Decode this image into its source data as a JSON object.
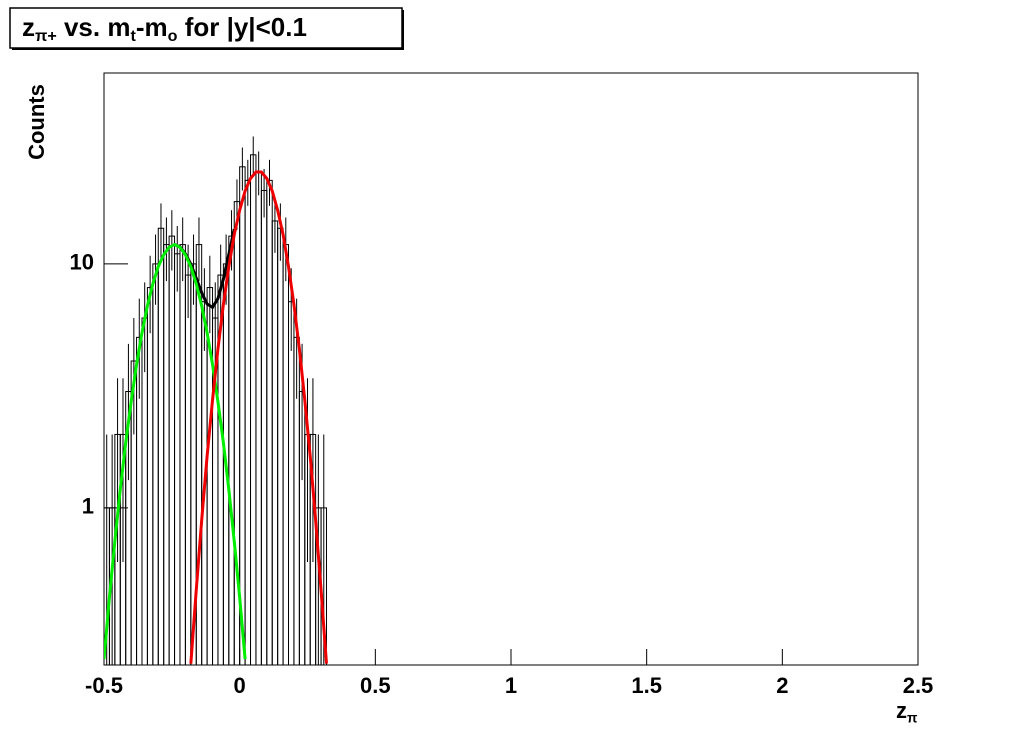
{
  "chart_data": {
    "type": "histogram",
    "title": [
      {
        "text": "z",
        "sub": false
      },
      {
        "text": "π+",
        "sub": true
      },
      {
        "text": " vs. m",
        "sub": false
      },
      {
        "text": "t",
        "sub": true
      },
      {
        "text": "-m",
        "sub": false
      },
      {
        "text": "o",
        "sub": true
      },
      {
        "text": " for |y|<0.1",
        "sub": false
      }
    ],
    "xlabel": [
      {
        "text": "z",
        "sub": false
      },
      {
        "text": "π",
        "sub": true
      }
    ],
    "ylabel": "Counts",
    "log_y": true,
    "color": "#000000",
    "bins": [
      -0.5,
      -0.48,
      -0.46,
      -0.44,
      -0.42,
      -0.4,
      -0.38,
      -0.36,
      -0.34,
      -0.32,
      -0.3,
      -0.28,
      -0.26,
      -0.24,
      -0.22,
      -0.2,
      -0.18,
      -0.16,
      -0.14,
      -0.12,
      -0.1,
      -0.08,
      -0.06,
      -0.04,
      -0.02,
      0,
      0.02,
      0.04,
      0.06,
      0.08,
      0.1,
      0.12,
      0.14,
      0.16,
      0.18,
      0.2,
      0.22,
      0.24,
      0.26,
      0.28,
      0.3,
      0.32
    ],
    "values": [
      1,
      1,
      2,
      2,
      3,
      4,
      5,
      6,
      8,
      10,
      14,
      12,
      13,
      11,
      12,
      9,
      10,
      12,
      7,
      8,
      6,
      9,
      10,
      13,
      18,
      25,
      22,
      28,
      24,
      20,
      22,
      15,
      14,
      12,
      7,
      5,
      3,
      2,
      2,
      1,
      1
    ],
    "errors": [
      1,
      1,
      1.4,
      1.4,
      1.7,
      2,
      2.2,
      2.4,
      2.8,
      3.2,
      3.7,
      3.5,
      3.6,
      3.3,
      3.5,
      3,
      3.2,
      3.5,
      2.6,
      2.8,
      2.4,
      3,
      3.2,
      3.6,
      4.2,
      5,
      4.7,
      5.3,
      4.9,
      4.5,
      4.7,
      3.9,
      3.7,
      3.5,
      2.6,
      2.2,
      1.7,
      1.4,
      1.4,
      1,
      1
    ],
    "fits": [
      {
        "color": "#000000",
        "x": [
          -0.24,
          -0.22,
          -0.2,
          -0.18,
          -0.16,
          -0.14,
          -0.12,
          -0.1,
          -0.08,
          -0.06,
          -0.04,
          -0.02
        ],
        "values": [
          12.0,
          11.75,
          11.0,
          9.98,
          8.74,
          7.62,
          6.85,
          6.64,
          7.21,
          8.67,
          10.94,
          13.9
        ]
      },
      {
        "color": "#00ee00",
        "x": [
          -0.5,
          -0.48,
          -0.46,
          -0.44,
          -0.42,
          -0.4,
          -0.38,
          -0.36,
          -0.34,
          -0.32,
          -0.3,
          -0.28,
          -0.26,
          -0.24,
          -0.22,
          -0.2,
          -0.18,
          -0.16,
          -0.14,
          -0.12,
          -0.1,
          -0.08,
          -0.06,
          -0.04,
          -0.02,
          0,
          0.02
        ],
        "values": [
          0.24,
          0.43,
          0.73,
          1.19,
          1.85,
          2.72,
          3.87,
          5.22,
          6.73,
          8.28,
          9.75,
          10.9,
          11.7,
          12,
          11.7,
          10.9,
          9.75,
          8.28,
          6.73,
          5.22,
          3.87,
          2.72,
          1.85,
          1.19,
          0.73,
          0.43,
          0.24
        ]
      },
      {
        "color": "#ee0000",
        "x": [
          -0.18,
          -0.16,
          -0.14,
          -0.12,
          -0.1,
          -0.08,
          -0.06,
          -0.04,
          -0.02,
          0,
          0.02,
          0.04,
          0.06,
          0.08,
          0.1,
          0.12,
          0.14,
          0.16,
          0.18,
          0.2,
          0.22,
          0.24,
          0.26,
          0.28,
          0.3,
          0.32
        ],
        "values": [
          0.23,
          0.46,
          0.89,
          1.63,
          2.77,
          4.49,
          6.82,
          9.75,
          13.2,
          16.6,
          19.9,
          22.4,
          23.8,
          23.8,
          22.4,
          19.9,
          16.6,
          13.2,
          9.75,
          6.82,
          4.49,
          2.77,
          1.63,
          0.89,
          0.46,
          0.23
        ]
      }
    ],
    "xlim": [
      -0.5,
      2.5
    ],
    "xticks": [
      -0.5,
      0,
      0.5,
      1,
      1.5,
      2,
      2.5
    ],
    "ylim": [
      0.227,
      60.6
    ],
    "yticks": [
      1,
      10
    ],
    "grid": false
  }
}
